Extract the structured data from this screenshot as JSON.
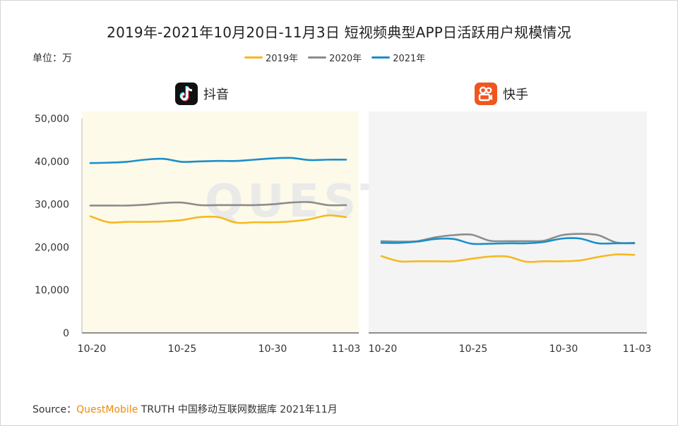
{
  "title": "2019年-2021年10月20日-11月3日 短视频典型APP日活跃用户规模情况",
  "unit_label": "单位：万",
  "source": {
    "prefix": "Source：",
    "brand": "QuestMobile",
    "rest": " TRUTH 中国移动互联网数据库 2021年11月"
  },
  "watermark": "QUEST MOBILE",
  "colors": {
    "2019": "#f5b921",
    "2020": "#8c8c8c",
    "2021": "#1a8fc9",
    "douyin_bg": "#fdfaea",
    "kuaishou_bg": "#f4f4f4",
    "kuaishou_icon": "#f0561e",
    "douyin_icon": "#111111"
  },
  "icons": {
    "douyin": "tiktok-note-icon",
    "kuaishou": "kuaishou-camera-icon"
  },
  "chart_data": [
    {
      "type": "line",
      "title": "抖音",
      "x": [
        "10-20",
        "10-21",
        "10-22",
        "10-23",
        "10-24",
        "10-25",
        "10-26",
        "10-27",
        "10-28",
        "10-29",
        "10-30",
        "10-31",
        "11-01",
        "11-02",
        "11-03"
      ],
      "x_tick_labels": [
        "10-20",
        "10-25",
        "10-30",
        "11-03"
      ],
      "ylim": [
        0,
        50000
      ],
      "y_ticks": [
        "0",
        "10,000",
        "20,000",
        "30,000",
        "40,000",
        "50,000"
      ],
      "y_ticks_shown": true,
      "series": [
        {
          "name": "2019年",
          "color_key": "2019",
          "values": [
            27200,
            25800,
            25900,
            25900,
            26000,
            26300,
            27000,
            27000,
            25700,
            25800,
            25800,
            26000,
            26500,
            27400,
            27000
          ]
        },
        {
          "name": "2020年",
          "color_key": "2020",
          "values": [
            29700,
            29700,
            29700,
            29900,
            30300,
            30400,
            29800,
            29800,
            29800,
            29800,
            30000,
            30400,
            30500,
            29800,
            29800
          ]
        },
        {
          "name": "2021年",
          "color_key": "2021",
          "values": [
            39600,
            39700,
            39900,
            40400,
            40600,
            39900,
            40000,
            40100,
            40100,
            40400,
            40700,
            40800,
            40300,
            40400,
            40400
          ]
        }
      ],
      "grid": false,
      "legend": "top-center"
    },
    {
      "type": "line",
      "title": "快手",
      "x": [
        "10-20",
        "10-21",
        "10-22",
        "10-23",
        "10-24",
        "10-25",
        "10-26",
        "10-27",
        "10-28",
        "10-29",
        "10-30",
        "10-31",
        "11-01",
        "11-02",
        "11-03"
      ],
      "x_tick_labels": [
        "10-20",
        "10-25",
        "10-30",
        "11-03"
      ],
      "ylim": [
        0,
        50000
      ],
      "y_ticks_shown": false,
      "series": [
        {
          "name": "2019年",
          "color_key": "2019",
          "values": [
            17900,
            16700,
            16700,
            16700,
            16700,
            17300,
            17800,
            17800,
            16600,
            16700,
            16700,
            16900,
            17700,
            18300,
            18200
          ]
        },
        {
          "name": "2020年",
          "color_key": "2020",
          "values": [
            21400,
            21300,
            21400,
            22300,
            22800,
            22900,
            21500,
            21400,
            21400,
            21500,
            22800,
            23100,
            22800,
            21100,
            21000
          ]
        },
        {
          "name": "2021年",
          "color_key": "2021",
          "values": [
            21000,
            21000,
            21300,
            21900,
            21900,
            20800,
            20800,
            20900,
            20900,
            21200,
            22000,
            22000,
            20900,
            20900,
            20900
          ]
        }
      ],
      "grid": false,
      "legend": "top-center"
    }
  ]
}
